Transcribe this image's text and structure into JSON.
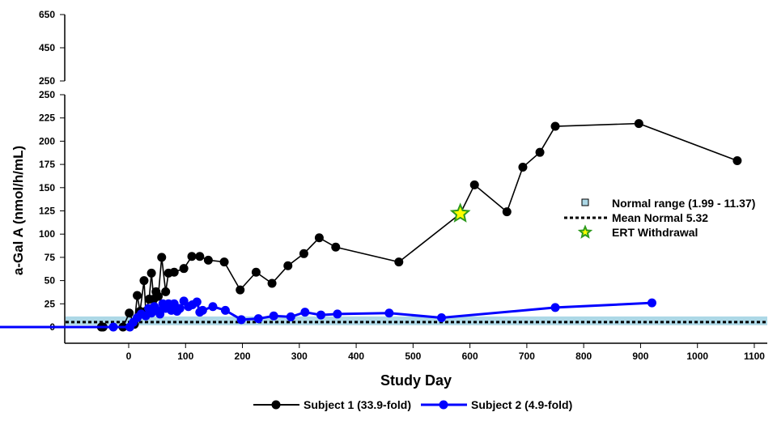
{
  "chart_data": {
    "type": "line",
    "title": "",
    "xlabel": "Study Day",
    "ylabel": "a-Gal A (nmol/h/mL)",
    "xlim": [
      -350,
      1100
    ],
    "xticks": [
      -350,
      0,
      100,
      200,
      300,
      400,
      500,
      600,
      700,
      800,
      900,
      1000,
      1100
    ],
    "y_axis_break": true,
    "ylim_lower": [
      0,
      250
    ],
    "yticks_lower": [
      0,
      25,
      50,
      75,
      100,
      125,
      150,
      175,
      200,
      225,
      250
    ],
    "ylim_upper": [
      250,
      650
    ],
    "yticks_upper": [
      250,
      450,
      650
    ],
    "grid": false,
    "normal_range": {
      "label": "Normal range (1.99 - 11.37)",
      "low": 1.99,
      "high": 11.37,
      "color": "#add8e6"
    },
    "mean_normal": {
      "label": "Mean Normal 5.32",
      "value": 5.32
    },
    "ert_withdrawal": {
      "label": "ERT Withdrawal",
      "x": 583,
      "y": 122,
      "color": "#ffff00",
      "edge": "#2e9a1e"
    },
    "series": [
      {
        "name": "Subject 1 (33.9-fold)",
        "color": "#000000",
        "x": [
          -48,
          -45,
          -10,
          1,
          10,
          15,
          20,
          27,
          30,
          36,
          40,
          44,
          48,
          52,
          58,
          65,
          70,
          80,
          97,
          111,
          125,
          140,
          168,
          196,
          224,
          252,
          280,
          308,
          335,
          364,
          475,
          583,
          608,
          665,
          693,
          723,
          750,
          897,
          1070
        ],
        "y": [
          0,
          0,
          0,
          15,
          3,
          34,
          17,
          50,
          17,
          30,
          58,
          30,
          38,
          33,
          75,
          38,
          58,
          59,
          63,
          76,
          76,
          72,
          70,
          40,
          59,
          47,
          66,
          79,
          96,
          86,
          70,
          122,
          153,
          124,
          172,
          188,
          216,
          219,
          179
        ]
      },
      {
        "name": "Subject 2 (4.9-fold)",
        "color": "#0000ff",
        "x": [
          -350,
          -27,
          2,
          8,
          15,
          22,
          30,
          35,
          40,
          45,
          50,
          55,
          60,
          65,
          70,
          75,
          80,
          85,
          90,
          97,
          105,
          112,
          120,
          125,
          130,
          148,
          170,
          198,
          228,
          255,
          285,
          310,
          338,
          367,
          458,
          550,
          750,
          920
        ],
        "y": [
          0,
          0,
          0,
          5,
          10,
          14,
          12,
          20,
          15,
          22,
          18,
          14,
          25,
          20,
          25,
          18,
          25,
          17,
          20,
          28,
          22,
          24,
          27,
          16,
          18,
          22,
          18,
          8,
          9,
          12,
          11,
          16,
          13,
          14,
          15,
          10,
          21,
          26
        ]
      }
    ],
    "legend": [
      "top-right (normal range, mean, ERT)",
      "bottom (subjects)"
    ]
  }
}
